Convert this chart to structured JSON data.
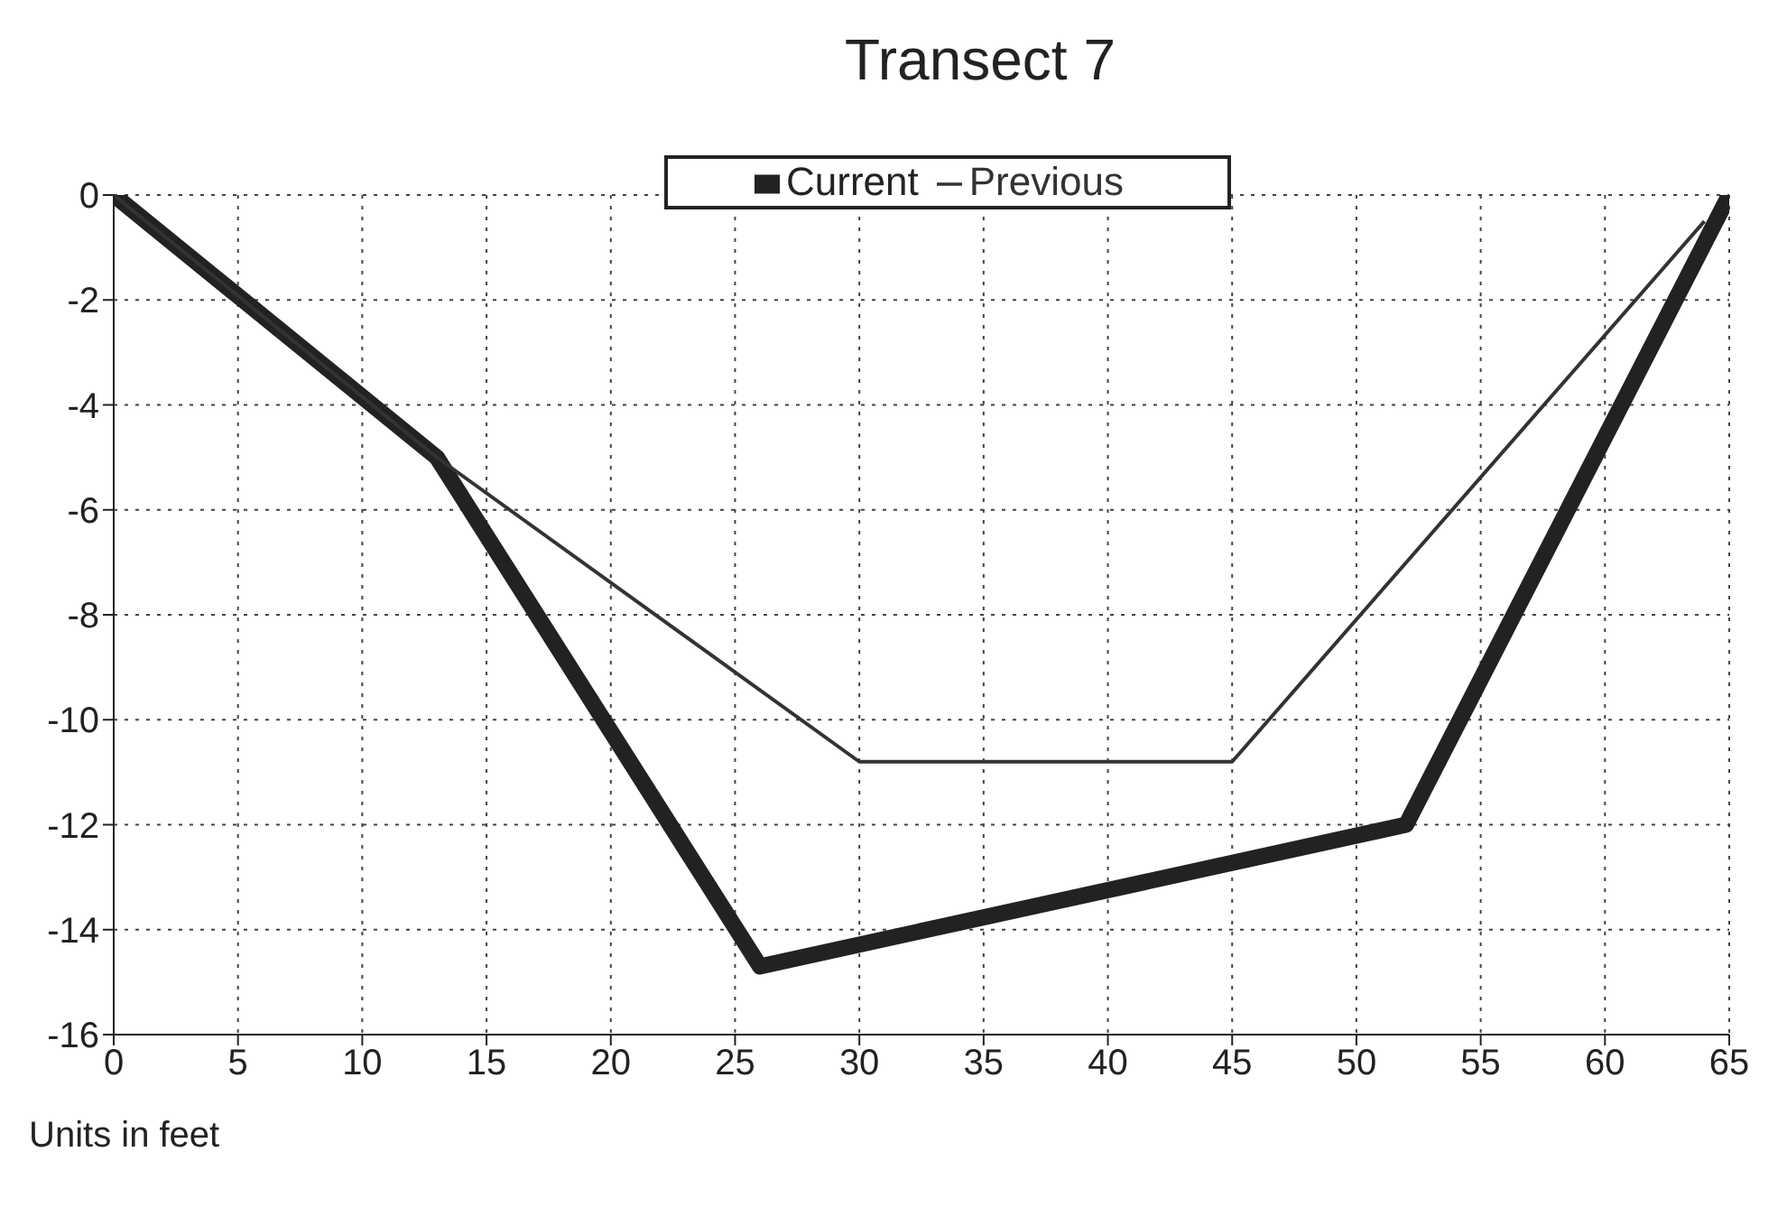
{
  "chart_data": {
    "type": "line",
    "title": "Transect 7",
    "xlabel": "Units in feet",
    "series": [
      {
        "name": "Current",
        "color": "#222222",
        "x": [
          0,
          13,
          26,
          52,
          65
        ],
        "values": [
          0,
          -5,
          -14.7,
          -12,
          0
        ]
      },
      {
        "name": "Previous",
        "color": "#333333",
        "x": [
          0,
          13,
          30,
          45,
          64
        ],
        "values": [
          0,
          -5,
          -10.8,
          -10.8,
          -0.5
        ]
      }
    ],
    "xlim": [
      0,
      65
    ],
    "xticks": [
      0,
      5,
      10,
      15,
      20,
      25,
      30,
      35,
      40,
      45,
      50,
      55,
      60,
      65
    ],
    "ylim": [
      -16,
      0
    ],
    "yticks": [
      -16,
      -14,
      -12,
      -10,
      -8,
      -6,
      -4,
      -2,
      0
    ],
    "grid": true,
    "legend": "top",
    "marker": "none",
    "line_style": "solid"
  }
}
